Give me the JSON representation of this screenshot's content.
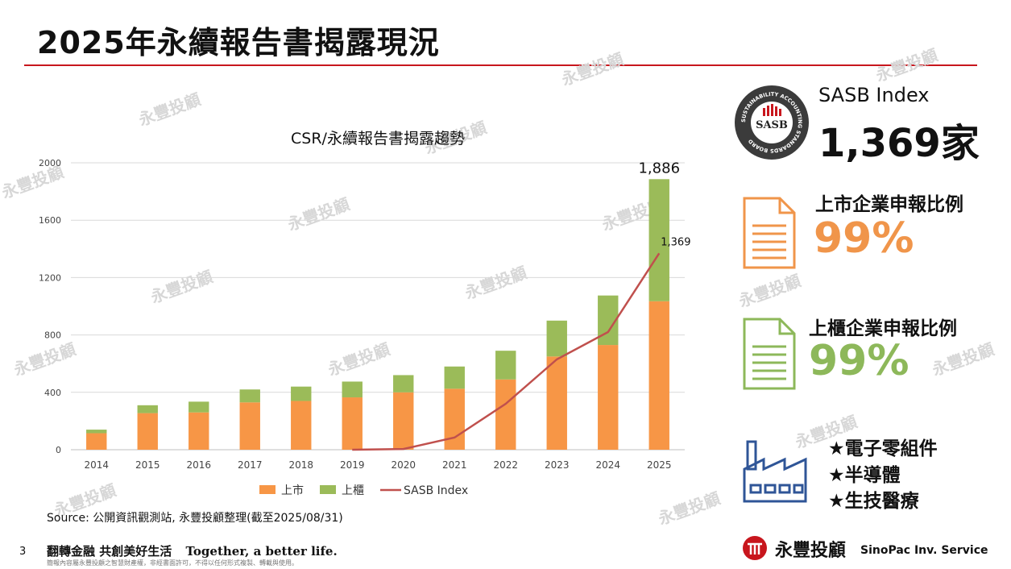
{
  "page": {
    "title": "2025年永續報告書揭露現況",
    "source": "Source: 公開資訊觀測站, 永豐投顧整理(截至2025/08/31)",
    "page_number": "3",
    "slogan_zh": "翻轉金融 共創美好生活",
    "slogan_en": "Together, a better life.",
    "disclaimer": "簡報內容屬永豐投顧之智慧財產權，非經書面許可，不得以任何形式複製、轉載與使用。",
    "watermark": "永豐投顧"
  },
  "sasb": {
    "logo_text": "SASB",
    "logo_ring_text": "SUSTAINABILITY ACCOUNTING STANDARDS BOARD",
    "label": "SASB Index",
    "value": "1,369家"
  },
  "listed": {
    "label": "上市企業申報比例",
    "value": "99%",
    "color": "#f0954a"
  },
  "otc": {
    "label": "上櫃企業申報比例",
    "value": "99%",
    "color": "#8db85a"
  },
  "sectors": [
    "★電子零組件",
    "★半導體",
    "★生技醫療"
  ],
  "brand": {
    "name_zh": "永豐投顧",
    "name_en": "SinoPac Inv. Service"
  },
  "chart_data": {
    "type": "bar",
    "stacked": true,
    "title": "CSR/永續報告書揭露趨勢",
    "categories": [
      "2014",
      "2015",
      "2016",
      "2017",
      "2018",
      "2019",
      "2020",
      "2021",
      "2022",
      "2023",
      "2024",
      "2025"
    ],
    "ylim": [
      0,
      2000
    ],
    "yticks": [
      0,
      400,
      800,
      1200,
      1600,
      2000
    ],
    "grid": true,
    "legend_position": "bottom",
    "series": [
      {
        "name": "上市",
        "type": "bar",
        "color": "#f79646",
        "values": [
          115,
          255,
          260,
          330,
          340,
          365,
          400,
          425,
          490,
          650,
          730,
          1035
        ]
      },
      {
        "name": "上櫃",
        "type": "bar",
        "color": "#9bbb59",
        "values": [
          25,
          55,
          75,
          90,
          100,
          110,
          120,
          155,
          200,
          250,
          345,
          851
        ]
      },
      {
        "name": "SASB Index",
        "type": "line",
        "color": "#c0504d",
        "values": [
          null,
          null,
          null,
          null,
          null,
          0,
          5,
          85,
          320,
          630,
          820,
          1369
        ]
      }
    ],
    "data_labels": [
      {
        "category": "2025",
        "text": "1,886",
        "series": "total"
      },
      {
        "category": "2025",
        "text": "1,369",
        "series": "SASB Index"
      }
    ]
  }
}
